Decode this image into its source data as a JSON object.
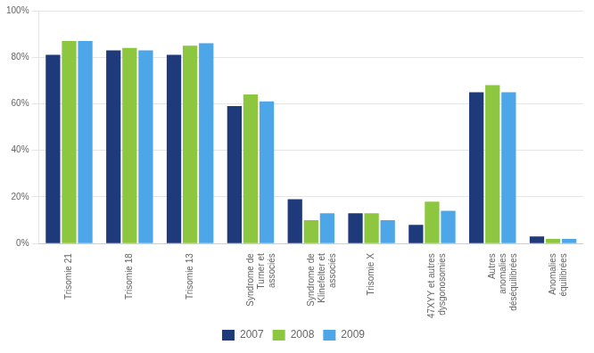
{
  "chart_data": {
    "type": "bar",
    "categories": [
      "Trisomie 21",
      "Trisomie 18",
      "Trisomie 13",
      "Syndrome de\nTurner et\nassociés",
      "Syndrome de\nKlinefelter et\nassociés",
      "Trisomie X",
      "47XYY et autres\ndysgonosomies",
      "Autres\nanomalies\ndéséquilibrées",
      "Anomalies\néquilibrées"
    ],
    "series": [
      {
        "name": "2007",
        "color": "#1F3A7A",
        "values": [
          0.81,
          0.83,
          0.81,
          0.59,
          0.19,
          0.13,
          0.08,
          0.65,
          0.03
        ]
      },
      {
        "name": "2008",
        "color": "#8DC63F",
        "values": [
          0.87,
          0.84,
          0.85,
          0.64,
          0.1,
          0.13,
          0.18,
          0.68,
          0.02
        ]
      },
      {
        "name": "2009",
        "color": "#4DA6E8",
        "values": [
          0.87,
          0.83,
          0.86,
          0.61,
          0.13,
          0.1,
          0.14,
          0.65,
          0.02
        ]
      }
    ],
    "ylim": [
      0,
      1.0
    ],
    "yticks": [
      {
        "value": 0,
        "label": "0%"
      },
      {
        "value": 0.2,
        "label": "20%"
      },
      {
        "value": 0.4,
        "label": "40%"
      },
      {
        "value": 0.6,
        "label": "60%"
      },
      {
        "value": 0.8,
        "label": "80%"
      },
      {
        "value": 1.0,
        "label": "100%"
      }
    ],
    "grid": true,
    "legend": "bottom"
  }
}
